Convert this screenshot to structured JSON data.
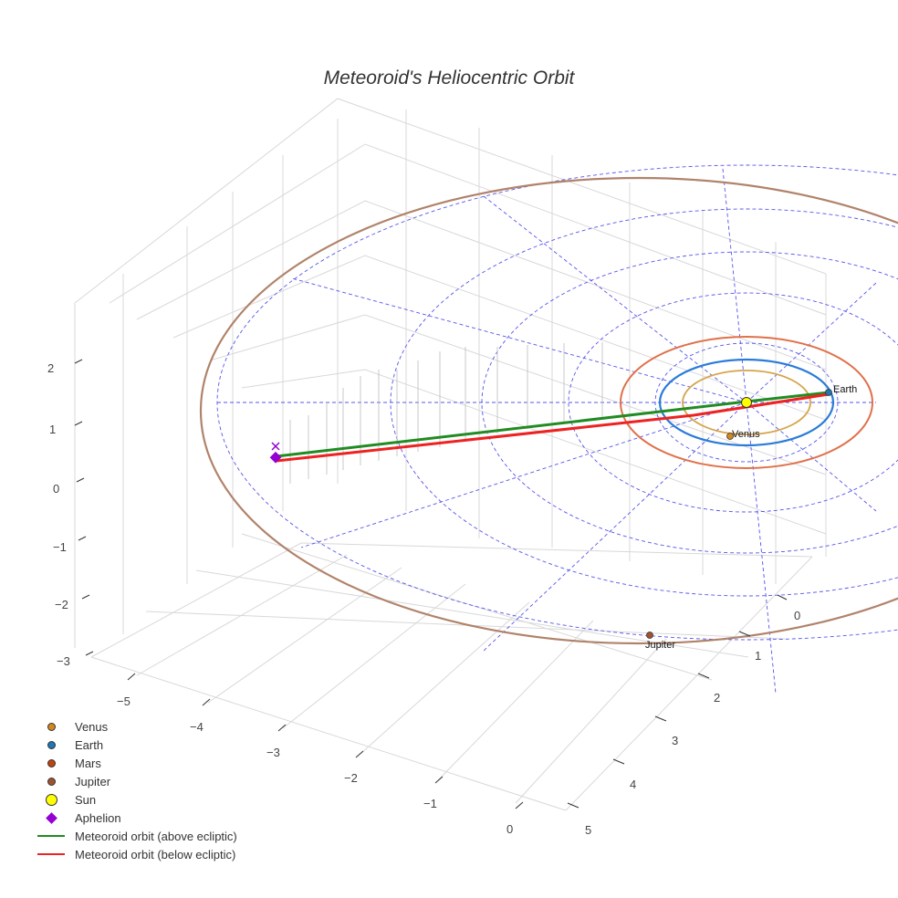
{
  "title": "Meteoroid's Heliocentric Orbit",
  "chart_data": {
    "type": "scatter3d",
    "title": "Meteoroid's Heliocentric Orbit",
    "axes": {
      "x": {
        "ticks": [
          "−5",
          "−4",
          "−3",
          "−2",
          "−1",
          "0"
        ]
      },
      "y": {
        "ticks": [
          "0",
          "1",
          "2",
          "3",
          "4",
          "5"
        ]
      },
      "z": {
        "ticks": [
          "2",
          "1",
          "0",
          "−1",
          "−2",
          "−3"
        ]
      }
    },
    "grid": true,
    "legend_placement": "bottom-left",
    "series": [
      {
        "name": "Venus",
        "type": "marker",
        "color": "#d4881c",
        "orbit_color": "#d4a44a"
      },
      {
        "name": "Earth",
        "type": "marker",
        "color": "#1f77b4",
        "orbit_color": "#2a7bd8"
      },
      {
        "name": "Mars",
        "type": "marker",
        "color": "#c1440e",
        "orbit_color": "#e0704a"
      },
      {
        "name": "Jupiter",
        "type": "marker",
        "color": "#a0522d",
        "orbit_color": "#b0836a"
      },
      {
        "name": "Sun",
        "type": "marker",
        "color": "#ffff00"
      },
      {
        "name": "Aphelion",
        "type": "diamond",
        "color": "#9400d3"
      },
      {
        "name": "Meteoroid orbit (above ecliptic)",
        "type": "line",
        "color": "#228b22"
      },
      {
        "name": "Meteoroid orbit (below ecliptic)",
        "type": "line",
        "color": "#ee2222"
      }
    ],
    "annotations": [
      "Earth",
      "Venus",
      "Jupiter"
    ]
  }
}
